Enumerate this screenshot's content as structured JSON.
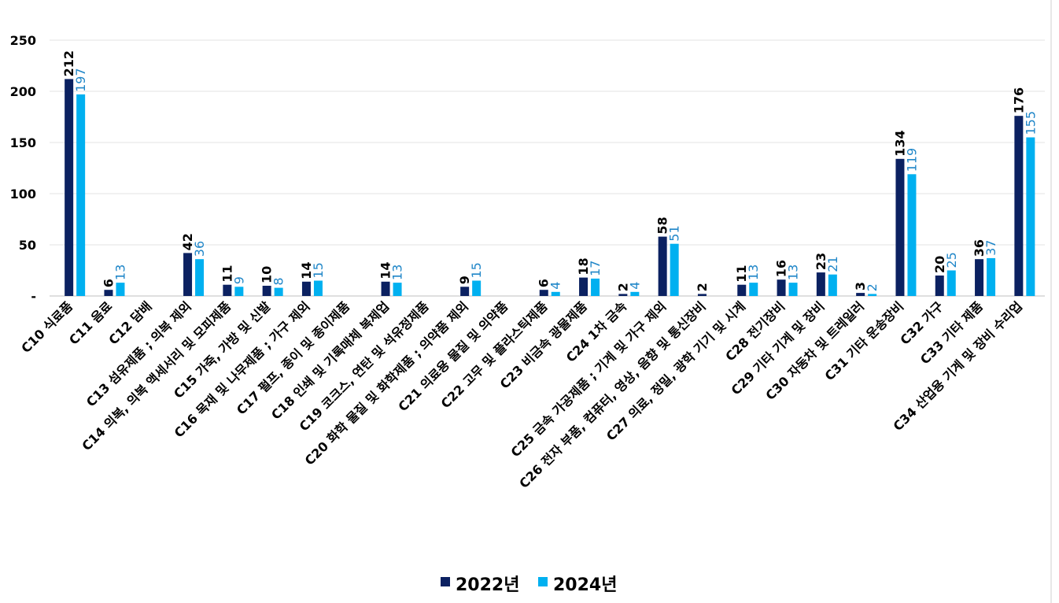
{
  "chart_data": {
    "type": "bar",
    "title": "",
    "xlabel": "",
    "ylabel": "",
    "ylim": [
      0,
      250
    ],
    "yticks": [
      {
        "value": 0,
        "label": "-"
      },
      {
        "value": 50,
        "label": "50"
      },
      {
        "value": 100,
        "label": "100"
      },
      {
        "value": 150,
        "label": "150"
      },
      {
        "value": 200,
        "label": "200"
      },
      {
        "value": 250,
        "label": "250"
      }
    ],
    "grid": true,
    "legend_position": "bottom",
    "categories": [
      "C10 식료품",
      "C11 음료",
      "C12 담배",
      "C13 섬유제품 ; 의복 제외",
      "C14 의복, 의복 액세서리 및 모피제품",
      "C15 가죽, 가방 및 신발",
      "C16 목재 및 나무제품 ; 가구 제외",
      "C17 펄프, 종이 및 종이제품",
      "C18 인쇄 및 기록매체 복제업",
      "C19 코크스, 연탄 및 석유정제품",
      "C20 화학 물질 및 화학제품 ; 의약품 제외",
      "C21 의료용 물질 및 의약품",
      "C22 고무 및 플라스틱제품",
      "C23 비금속 광물제품",
      "C24 1차 금속",
      "C25 금속 가공제품 ; 기계 및 가구 제외",
      "C26 전자 부품, 컴퓨터, 영상, 음향 및 통신장비",
      "C27 의료, 정밀, 광학 기기 및 시계",
      "C28 전기장비",
      "C29 기타 기계 및 장비",
      "C30 자동차 및 트레일러",
      "C31 기타 운송장비",
      "C32 가구",
      "C33 기타 제품",
      "C34 산업용 기계 및 장비 수리업"
    ],
    "series": [
      {
        "name": "2022년",
        "color": "#0b2161",
        "values": [
          212,
          6,
          null,
          42,
          11,
          10,
          14,
          null,
          14,
          null,
          9,
          null,
          6,
          18,
          2,
          58,
          2,
          11,
          16,
          23,
          3,
          134,
          20,
          36,
          176
        ]
      },
      {
        "name": "2024년",
        "color": "#00b0f0",
        "values": [
          197,
          13,
          null,
          36,
          9,
          8,
          15,
          null,
          13,
          null,
          15,
          null,
          4,
          17,
          4,
          51,
          null,
          13,
          13,
          21,
          2,
          119,
          25,
          37,
          155
        ]
      }
    ]
  }
}
